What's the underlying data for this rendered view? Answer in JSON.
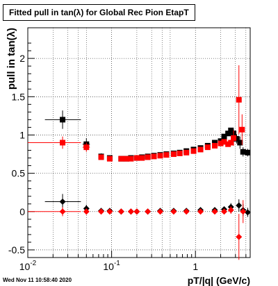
{
  "chart_data": {
    "type": "scatter",
    "title": "Fitted pull in tan(λ) for Global Rec Pion EtapT",
    "xlabel": "pT/|q| (GeV/c)",
    "ylabel": "pull in tan(λ)",
    "xscale": "log",
    "xlim": [
      0.01,
      4.5
    ],
    "ylim": [
      -0.6,
      2.4
    ],
    "x_tick_labels": [
      "10^-2",
      "10^-1",
      "1"
    ],
    "y_ticks": [
      -0.5,
      0,
      0.5,
      1,
      1.5,
      2
    ],
    "grid": true,
    "footer": "Wed Nov 11 10:58:40 2020",
    "colors": {
      "black": "#000000",
      "red": "#ff0000"
    },
    "series": [
      {
        "marker": "square",
        "color": "#000000",
        "points": [
          {
            "x": 0.026,
            "y": 1.2,
            "xerr": [
              0.016,
              0.043
            ],
            "yerr": 0.12
          },
          {
            "x": 0.05,
            "y": 0.88,
            "xerr": [
              0.045,
              0.055
            ],
            "yerr": 0.08
          },
          {
            "x": 0.075,
            "y": 0.72,
            "yerr": 0.04
          },
          {
            "x": 0.095,
            "y": 0.7,
            "yerr": 0.02
          },
          {
            "x": 0.13,
            "y": 0.69
          },
          {
            "x": 0.15,
            "y": 0.69
          },
          {
            "x": 0.17,
            "y": 0.7
          },
          {
            "x": 0.2,
            "y": 0.7
          },
          {
            "x": 0.23,
            "y": 0.71
          },
          {
            "x": 0.27,
            "y": 0.72
          },
          {
            "x": 0.32,
            "y": 0.73
          },
          {
            "x": 0.38,
            "y": 0.74
          },
          {
            "x": 0.45,
            "y": 0.75
          },
          {
            "x": 0.55,
            "y": 0.76
          },
          {
            "x": 0.65,
            "y": 0.77
          },
          {
            "x": 0.78,
            "y": 0.79
          },
          {
            "x": 0.95,
            "y": 0.81
          },
          {
            "x": 1.15,
            "y": 0.83
          },
          {
            "x": 1.4,
            "y": 0.86
          },
          {
            "x": 1.7,
            "y": 0.9
          },
          {
            "x": 2.0,
            "y": 0.92
          },
          {
            "x": 2.2,
            "y": 0.98
          },
          {
            "x": 2.45,
            "y": 1.02
          },
          {
            "x": 2.65,
            "y": 1.06
          },
          {
            "x": 2.85,
            "y": 1.02,
            "yerr": 0.05
          },
          {
            "x": 3.1,
            "y": 0.95,
            "yerr": 0.06
          },
          {
            "x": 3.4,
            "y": 0.9,
            "yerr": 0.08
          },
          {
            "x": 3.7,
            "y": 0.78,
            "yerr": 0.06
          },
          {
            "x": 4.2,
            "y": 0.77,
            "yerr": 0.05
          }
        ]
      },
      {
        "marker": "square",
        "color": "#ff0000",
        "points": [
          {
            "x": 0.026,
            "y": 0.9,
            "xerr": [
              0.01,
              0.043
            ],
            "yerr": 0.08
          },
          {
            "x": 0.05,
            "y": 0.84,
            "xerr": [
              0.045,
              0.055
            ],
            "yerr": 0.06
          },
          {
            "x": 0.075,
            "y": 0.71,
            "yerr": 0.03
          },
          {
            "x": 0.095,
            "y": 0.69,
            "yerr": 0.02
          },
          {
            "x": 0.13,
            "y": 0.69
          },
          {
            "x": 0.15,
            "y": 0.69
          },
          {
            "x": 0.17,
            "y": 0.69
          },
          {
            "x": 0.2,
            "y": 0.7
          },
          {
            "x": 0.23,
            "y": 0.7
          },
          {
            "x": 0.27,
            "y": 0.71
          },
          {
            "x": 0.32,
            "y": 0.72
          },
          {
            "x": 0.38,
            "y": 0.73
          },
          {
            "x": 0.45,
            "y": 0.74
          },
          {
            "x": 0.55,
            "y": 0.75
          },
          {
            "x": 0.65,
            "y": 0.76
          },
          {
            "x": 0.78,
            "y": 0.77
          },
          {
            "x": 0.95,
            "y": 0.79
          },
          {
            "x": 1.15,
            "y": 0.81
          },
          {
            "x": 1.4,
            "y": 0.84
          },
          {
            "x": 1.7,
            "y": 0.86
          },
          {
            "x": 2.0,
            "y": 0.89
          },
          {
            "x": 2.2,
            "y": 0.91
          },
          {
            "x": 2.45,
            "y": 0.88
          },
          {
            "x": 2.65,
            "y": 0.9
          },
          {
            "x": 2.85,
            "y": 0.96,
            "yerr": 0.1
          },
          {
            "x": 3.3,
            "y": 1.46,
            "yerr": 0.45
          },
          {
            "x": 3.6,
            "y": 1.07,
            "yerr": 0.2
          }
        ]
      },
      {
        "marker": "diamond",
        "color": "#000000",
        "points": [
          {
            "x": 0.026,
            "y": 0.13,
            "xerr": [
              0.016,
              0.043
            ],
            "yerr": 0.1
          },
          {
            "x": 0.05,
            "y": 0.04,
            "yerr": 0.05
          },
          {
            "x": 0.075,
            "y": 0.01,
            "yerr": 0.03
          },
          {
            "x": 0.095,
            "y": 0.01
          },
          {
            "x": 0.13,
            "y": 0.0
          },
          {
            "x": 0.17,
            "y": 0.0
          },
          {
            "x": 0.2,
            "y": 0.0
          },
          {
            "x": 0.27,
            "y": 0.0
          },
          {
            "x": 0.38,
            "y": 0.01
          },
          {
            "x": 0.55,
            "y": 0.01
          },
          {
            "x": 0.78,
            "y": 0.01
          },
          {
            "x": 1.15,
            "y": 0.02
          },
          {
            "x": 1.7,
            "y": 0.02
          },
          {
            "x": 2.2,
            "y": 0.03
          },
          {
            "x": 2.65,
            "y": 0.06,
            "yerr": 0.05
          },
          {
            "x": 3.3,
            "y": 0.08,
            "yerr": 0.08
          },
          {
            "x": 3.7,
            "y": 0.02,
            "yerr": 0.08
          },
          {
            "x": 4.2,
            "y": -0.01,
            "yerr": 0.06
          }
        ]
      },
      {
        "marker": "diamond",
        "color": "#ff0000",
        "points": [
          {
            "x": 0.026,
            "y": 0.0,
            "xerr": [
              0.01,
              0.043
            ],
            "yerr": 0.06
          },
          {
            "x": 0.05,
            "y": 0.0,
            "yerr": 0.04
          },
          {
            "x": 0.075,
            "y": 0.0,
            "yerr": 0.02
          },
          {
            "x": 0.095,
            "y": 0.0
          },
          {
            "x": 0.13,
            "y": 0.0
          },
          {
            "x": 0.17,
            "y": 0.0
          },
          {
            "x": 0.2,
            "y": 0.0
          },
          {
            "x": 0.27,
            "y": 0.0
          },
          {
            "x": 0.38,
            "y": 0.0
          },
          {
            "x": 0.55,
            "y": 0.0
          },
          {
            "x": 0.78,
            "y": 0.0
          },
          {
            "x": 1.15,
            "y": 0.0
          },
          {
            "x": 1.7,
            "y": 0.0
          },
          {
            "x": 2.2,
            "y": 0.0
          },
          {
            "x": 2.65,
            "y": 0.02,
            "yerr": 0.05
          },
          {
            "x": 3.3,
            "y": -0.33,
            "yerr": 0.3
          },
          {
            "x": 3.7,
            "y": 0.0,
            "yerr": 0.15
          }
        ]
      }
    ]
  }
}
